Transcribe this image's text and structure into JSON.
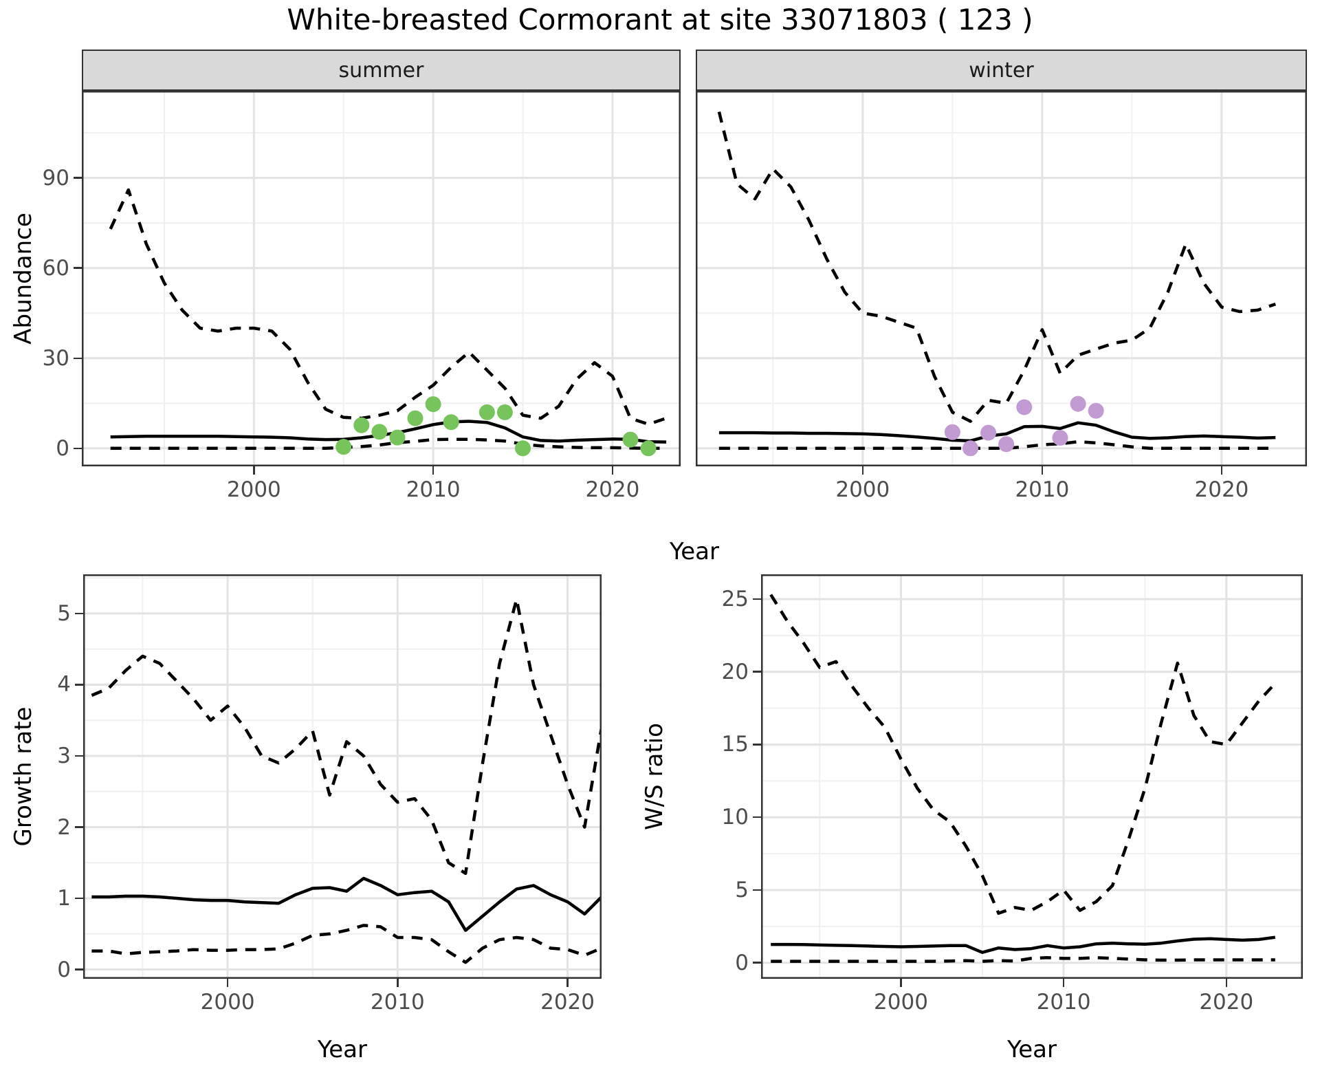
{
  "title": "White-breasted Cormorant at site 33071803 ( 123 )",
  "colors": {
    "summer_points": "#77c35c",
    "winter_points": "#c39bd3",
    "line": "#000000",
    "grid_major": "#e3e3e3",
    "grid_minor": "#f0f0f0",
    "strip_bg": "#d9d9d9",
    "panel_border": "#333333",
    "axis_text": "#4d4d4d"
  },
  "axis_titles": {
    "x": "Year",
    "y_top": "Abundance",
    "y_growth": "Growth rate",
    "y_ws": "W/S ratio"
  },
  "chart_data": [
    {
      "id": "summer",
      "type": "line",
      "facet_label": "summer",
      "xlabel": "Year",
      "ylabel": "Abundance",
      "xlim": [
        1990.4,
        2023.8
      ],
      "ylim": [
        -6,
        119
      ],
      "xticks": [
        2000,
        2010,
        2020
      ],
      "yticks": [
        0,
        30,
        60,
        90
      ],
      "grid": true,
      "years": [
        1992,
        1993,
        1994,
        1995,
        1996,
        1997,
        1998,
        1999,
        2000,
        2001,
        2002,
        2003,
        2004,
        2005,
        2006,
        2007,
        2008,
        2009,
        2010,
        2011,
        2012,
        2013,
        2014,
        2015,
        2016,
        2017,
        2018,
        2019,
        2020,
        2021,
        2022,
        2023
      ],
      "series": [
        {
          "name": "upper_95ci",
          "style": "dashed",
          "values": [
            73,
            86,
            68,
            55,
            46,
            40,
            39,
            40,
            40,
            39,
            33,
            22,
            13,
            10.3,
            10,
            11,
            12.5,
            17,
            21,
            27,
            32,
            26,
            20,
            11,
            10,
            14,
            23,
            28.5,
            24,
            10,
            8,
            10
          ]
        },
        {
          "name": "mean_estimate",
          "style": "solid",
          "values": [
            3.8,
            3.9,
            4.0,
            4.0,
            4.0,
            4.0,
            4.0,
            3.9,
            3.8,
            3.7,
            3.5,
            3.1,
            2.9,
            3.0,
            3.5,
            4.3,
            5.2,
            6.5,
            7.9,
            8.8,
            9.0,
            8.6,
            6.8,
            3.8,
            2.6,
            2.4,
            2.7,
            2.9,
            3.1,
            3.0,
            2.2,
            2.1
          ]
        },
        {
          "name": "lower_95ci",
          "style": "dashed",
          "values": [
            0,
            0,
            0,
            0,
            0,
            0,
            0,
            0,
            0,
            0,
            0,
            0,
            0,
            0.3,
            0.6,
            1.1,
            1.9,
            2.3,
            2.9,
            3.0,
            3.0,
            2.8,
            2.4,
            1.4,
            0.8,
            0.5,
            0.3,
            0.2,
            0.2,
            0.1,
            0,
            0
          ]
        }
      ],
      "observed_points": {
        "name": "observed_counts",
        "color_key": "summer_points",
        "data": [
          [
            2005,
            0.5
          ],
          [
            2006,
            7.7
          ],
          [
            2007,
            5.5
          ],
          [
            2008,
            3.6
          ],
          [
            2009,
            10
          ],
          [
            2010,
            14.7
          ],
          [
            2011,
            8.7
          ],
          [
            2013,
            12
          ],
          [
            2014,
            12
          ],
          [
            2015,
            0
          ],
          [
            2021,
            2.9
          ],
          [
            2022,
            0
          ]
        ]
      }
    },
    {
      "id": "winter",
      "type": "line",
      "facet_label": "winter",
      "xlabel": "Year",
      "ylabel": "Abundance",
      "xlim": [
        1990.7,
        2024.75
      ],
      "ylim": [
        -6,
        119
      ],
      "xticks": [
        2000,
        2010,
        2020
      ],
      "yticks": [
        0,
        30,
        60,
        90
      ],
      "grid": true,
      "years": [
        1992,
        1993,
        1994,
        1995,
        1996,
        1997,
        1998,
        1999,
        2000,
        2001,
        2002,
        2003,
        2004,
        2005,
        2006,
        2007,
        2008,
        2009,
        2010,
        2011,
        2012,
        2013,
        2014,
        2015,
        2016,
        2017,
        2018,
        2019,
        2020,
        2021,
        2022,
        2023
      ],
      "series": [
        {
          "name": "upper_95ci",
          "style": "dashed",
          "values": [
            112,
            88,
            83,
            93,
            87,
            76,
            63,
            52,
            45,
            44,
            42,
            40,
            24,
            12,
            9,
            16,
            15,
            26,
            39.5,
            25,
            31,
            33,
            35,
            36,
            40,
            52,
            68,
            55,
            47,
            45.5,
            46,
            48
          ]
        },
        {
          "name": "mean_estimate",
          "style": "solid",
          "values": [
            5.2,
            5.2,
            5.2,
            5.1,
            5.1,
            5.0,
            5.0,
            4.9,
            4.8,
            4.6,
            4.2,
            3.8,
            3.3,
            2.7,
            2.5,
            4.1,
            4.8,
            7.2,
            7.3,
            6.6,
            8.5,
            7.7,
            5.5,
            3.7,
            3.3,
            3.5,
            3.9,
            4.1,
            3.9,
            3.7,
            3.4,
            3.6
          ]
        },
        {
          "name": "lower_95ci",
          "style": "dashed",
          "values": [
            0,
            0,
            0,
            0,
            0,
            0,
            0,
            0,
            0,
            0,
            0,
            0,
            0,
            0,
            0,
            0,
            0,
            0.5,
            1.2,
            1.5,
            2.2,
            1.8,
            1.2,
            0.5,
            0,
            0,
            0,
            0,
            0,
            0,
            0,
            0
          ]
        }
      ],
      "observed_points": {
        "name": "observed_counts",
        "color_key": "winter_points",
        "data": [
          [
            2005,
            5.4
          ],
          [
            2006,
            0
          ],
          [
            2007,
            5.2
          ],
          [
            2008,
            1.4
          ],
          [
            2009,
            13.7
          ],
          [
            2011,
            3.5
          ],
          [
            2012,
            14.8
          ],
          [
            2013,
            12.5
          ]
        ]
      }
    },
    {
      "id": "growth",
      "type": "line",
      "facet_label": "",
      "xlabel": "Year",
      "ylabel": "Growth rate",
      "xlim": [
        1991.5,
        2022.0
      ],
      "ylim": [
        -0.13,
        5.55
      ],
      "xticks": [
        2000,
        2010,
        2020
      ],
      "yticks": [
        0,
        1,
        2,
        3,
        4,
        5
      ],
      "grid": true,
      "years": [
        1992,
        1993,
        1994,
        1995,
        1996,
        1997,
        1998,
        1999,
        2000,
        2001,
        2002,
        2003,
        2004,
        2005,
        2006,
        2007,
        2008,
        2009,
        2010,
        2011,
        2012,
        2013,
        2014,
        2015,
        2016,
        2017,
        2018,
        2019,
        2020,
        2021,
        2022
      ],
      "series": [
        {
          "name": "upper_95ci",
          "style": "dashed",
          "values": [
            3.85,
            3.95,
            4.2,
            4.4,
            4.3,
            4.05,
            3.8,
            3.5,
            3.7,
            3.4,
            3.0,
            2.9,
            3.1,
            3.35,
            2.45,
            3.2,
            3.0,
            2.6,
            2.35,
            2.4,
            2.1,
            1.5,
            1.35,
            2.9,
            4.3,
            5.2,
            4.0,
            3.3,
            2.6,
            2.0,
            3.4
          ]
        },
        {
          "name": "mean_estimate",
          "style": "solid",
          "values": [
            1.02,
            1.02,
            1.03,
            1.03,
            1.02,
            1.0,
            0.98,
            0.97,
            0.97,
            0.95,
            0.94,
            0.93,
            1.05,
            1.14,
            1.15,
            1.1,
            1.28,
            1.18,
            1.05,
            1.08,
            1.1,
            0.95,
            0.55,
            0.75,
            0.95,
            1.13,
            1.18,
            1.05,
            0.95,
            0.78,
            1.02
          ]
        },
        {
          "name": "lower_95ci",
          "style": "dashed",
          "values": [
            0.26,
            0.26,
            0.22,
            0.24,
            0.25,
            0.26,
            0.28,
            0.27,
            0.27,
            0.28,
            0.28,
            0.29,
            0.37,
            0.48,
            0.5,
            0.55,
            0.62,
            0.6,
            0.45,
            0.45,
            0.42,
            0.25,
            0.1,
            0.3,
            0.42,
            0.45,
            0.42,
            0.3,
            0.28,
            0.2,
            0.3
          ]
        }
      ]
    },
    {
      "id": "ws",
      "type": "line",
      "facet_label": "",
      "xlabel": "Year",
      "ylabel": "W/S ratio",
      "xlim": [
        1991.4,
        2024.7
      ],
      "ylim": [
        -1.1,
        26.7
      ],
      "xticks": [
        2000,
        2010,
        2020
      ],
      "yticks": [
        0,
        5,
        10,
        15,
        20,
        25
      ],
      "grid": true,
      "years": [
        1992,
        1993,
        1994,
        1995,
        1996,
        1997,
        1998,
        1999,
        2000,
        2001,
        2002,
        2003,
        2004,
        2005,
        2006,
        2007,
        2008,
        2009,
        2010,
        2011,
        2012,
        2013,
        2014,
        2015,
        2016,
        2017,
        2018,
        2019,
        2020,
        2021,
        2022,
        2023
      ],
      "series": [
        {
          "name": "upper_95ci",
          "style": "dashed",
          "values": [
            25.3,
            23.5,
            22.0,
            20.3,
            20.7,
            19.0,
            17.5,
            16.2,
            14.0,
            12.0,
            10.5,
            9.7,
            8.0,
            6.0,
            3.4,
            3.8,
            3.6,
            4.2,
            5.0,
            3.6,
            4.2,
            5.3,
            8.5,
            12.0,
            16.5,
            20.6,
            17.0,
            15.2,
            15.0,
            16.5,
            18.0,
            19.2
          ]
        },
        {
          "name": "mean_estimate",
          "style": "solid",
          "values": [
            1.26,
            1.26,
            1.25,
            1.22,
            1.2,
            1.18,
            1.15,
            1.12,
            1.1,
            1.12,
            1.15,
            1.18,
            1.18,
            0.71,
            1.02,
            0.91,
            0.97,
            1.18,
            1.02,
            1.1,
            1.3,
            1.35,
            1.3,
            1.28,
            1.35,
            1.5,
            1.62,
            1.65,
            1.6,
            1.55,
            1.6,
            1.75
          ]
        },
        {
          "name": "lower_95ci",
          "style": "dashed",
          "values": [
            0.1,
            0.1,
            0.1,
            0.1,
            0.1,
            0.1,
            0.1,
            0.1,
            0.1,
            0.1,
            0.1,
            0.12,
            0.15,
            0.1,
            0.15,
            0.12,
            0.3,
            0.35,
            0.3,
            0.3,
            0.35,
            0.3,
            0.25,
            0.2,
            0.18,
            0.18,
            0.2,
            0.2,
            0.2,
            0.2,
            0.2,
            0.2
          ]
        }
      ]
    }
  ]
}
